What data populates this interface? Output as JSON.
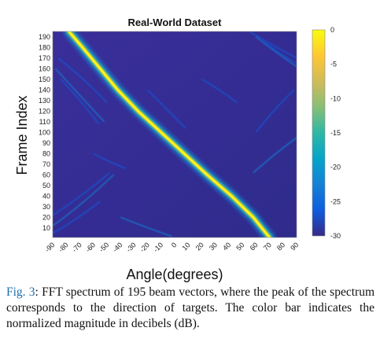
{
  "chart_data": {
    "type": "heatmap",
    "title": "Real-World Dataset",
    "xlabel": "Angle(degrees)",
    "ylabel": "Frame Index",
    "xlim": [
      -90,
      90
    ],
    "ylim": [
      1,
      195
    ],
    "x_ticks": [
      "-90",
      "-80",
      "-70",
      "-60",
      "-50",
      "-40",
      "-30",
      "-20",
      "-10",
      "0",
      "10",
      "20",
      "30",
      "40",
      "50",
      "60",
      "70",
      "80",
      "90"
    ],
    "y_ticks": [
      "10",
      "20",
      "30",
      "40",
      "50",
      "60",
      "70",
      "80",
      "90",
      "100",
      "110",
      "120",
      "130",
      "140",
      "150",
      "160",
      "170",
      "180",
      "190"
    ],
    "colorbar": {
      "range": [
        -30,
        0
      ],
      "ticks": [
        "0",
        "-5",
        "-10",
        "-15",
        "-20",
        "-25",
        "-30"
      ],
      "colormap": "parula",
      "colors": [
        "#352a87",
        "#0f5cdd",
        "#1481d6",
        "#06a4ca",
        "#2eb7a4",
        "#87bf77",
        "#d1bb59",
        "#fec832",
        "#f9fb0e"
      ]
    },
    "ridge": [
      {
        "frame": 195,
        "angle": -78
      },
      {
        "frame": 180,
        "angle": -68
      },
      {
        "frame": 160,
        "angle": -55
      },
      {
        "frame": 140,
        "angle": -42
      },
      {
        "frame": 120,
        "angle": -27
      },
      {
        "frame": 100,
        "angle": -10
      },
      {
        "frame": 80,
        "angle": 7
      },
      {
        "frame": 60,
        "angle": 24
      },
      {
        "frame": 40,
        "angle": 42
      },
      {
        "frame": 20,
        "angle": 58
      },
      {
        "frame": 1,
        "angle": 70
      }
    ],
    "peak_db": 0,
    "background_db": -30
  },
  "caption": {
    "fig_label": "Fig. 3",
    "text": ": FFT spectrum of 195 beam vectors, where the peak of the spectrum corresponds to the direction of targets. The color bar indicates the normalized magnitude in decibels (dB)."
  }
}
